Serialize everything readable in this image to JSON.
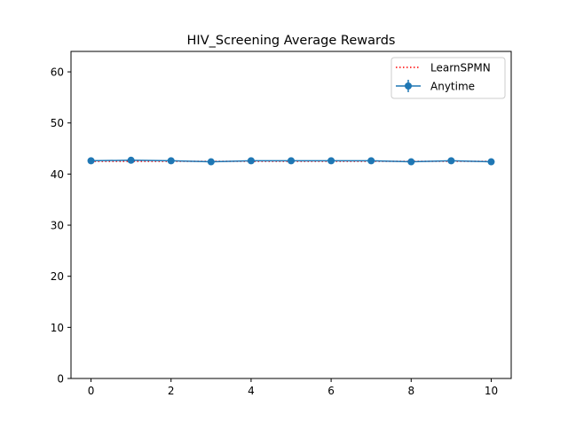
{
  "chart_data": {
    "type": "line",
    "title": "HIV_Screening Average Rewards",
    "xlabel": "",
    "ylabel": "",
    "xlim": [
      -0.5,
      10.5
    ],
    "ylim": [
      0,
      64
    ],
    "xticks": [
      0,
      2,
      4,
      6,
      8,
      10
    ],
    "yticks": [
      0,
      10,
      20,
      30,
      40,
      50,
      60
    ],
    "grid": false,
    "legend_position": "top-right",
    "series": [
      {
        "name": "LearnSPMN",
        "style": "dotted",
        "color": "#ff0000",
        "x": [
          0,
          10
        ],
        "values": [
          42.5,
          42.5
        ]
      },
      {
        "name": "Anytime",
        "style": "solid-markers",
        "color": "#1f77b4",
        "x": [
          0,
          1,
          2,
          3,
          4,
          5,
          6,
          7,
          8,
          9,
          10
        ],
        "values": [
          42.6,
          42.7,
          42.6,
          42.4,
          42.6,
          42.6,
          42.6,
          42.6,
          42.4,
          42.6,
          42.4
        ]
      }
    ]
  }
}
